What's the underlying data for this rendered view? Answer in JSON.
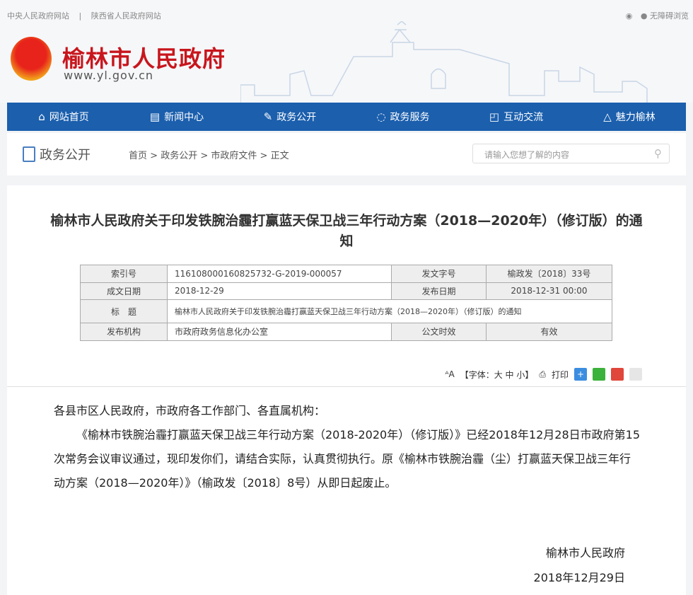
{
  "toplinks": {
    "central": "中央人民政府网站",
    "sep": "|",
    "shaanxi": "陕西省人民政府网站",
    "accessible": "无障碍浏览"
  },
  "logo": {
    "title": "榆林市人民政府",
    "url": "www.yl.gov.cn"
  },
  "nav": [
    {
      "label": "网站首页",
      "icon": "home-icon"
    },
    {
      "label": "新闻中心",
      "icon": "news-icon"
    },
    {
      "label": "政务公开",
      "icon": "edit-icon"
    },
    {
      "label": "政务服务",
      "icon": "service-icon"
    },
    {
      "label": "互动交流",
      "icon": "chat-icon"
    },
    {
      "label": "魅力榆林",
      "icon": "scenery-icon"
    }
  ],
  "section": {
    "title": "政务公开"
  },
  "breadcrumb": [
    "首页",
    "政务公开",
    "市政府文件",
    "正文"
  ],
  "search": {
    "placeholder": "请输入您想了解的内容"
  },
  "doc": {
    "title": "榆林市人民政府关于印发铁腕治霾打赢蓝天保卫战三年行动方案（2018—2020年）（修订版）的通知",
    "meta": {
      "index_label": "索引号",
      "index": "116108000160825732-G-2019-000057",
      "docno_label": "发文字号",
      "docno": "榆政发〔2018〕33号",
      "created_label": "成文日期",
      "created": "2018-12-29",
      "published_label": "发布日期",
      "published": "2018-12-31 00:00",
      "title_label": "标　题",
      "title": "榆林市人民政府关于印发铁腕治霾打赢蓝天保卫战三年行动方案（2018—2020年）（修订版）的通知",
      "org_label": "发布机构",
      "org": "市政府政务信息化办公室",
      "validity_label": "公文时效",
      "validity": "有效"
    },
    "tools": {
      "font": "【字体：大 中 小】",
      "print": "打印"
    },
    "salutation": "各县市区人民政府，市政府各工作部门、各直属机构：",
    "paragraph": "《榆林市铁腕治霾打赢蓝天保卫战三年行动方案（2018-2020年）（修订版）》已经2018年12月28日市政府第15次常务会议审议通过，现印发你们，请结合实际，认真贯彻执行。原《榆林市铁腕治霾（尘）打赢蓝天保卫战三年行动方案（2018—2020年）》（榆政发〔2018〕8号）从即日起废止。",
    "signer": "榆林市人民政府",
    "date": "2018年12月29日"
  },
  "colors": {
    "nav": "#1b5fad",
    "logo": "#c8161d"
  }
}
